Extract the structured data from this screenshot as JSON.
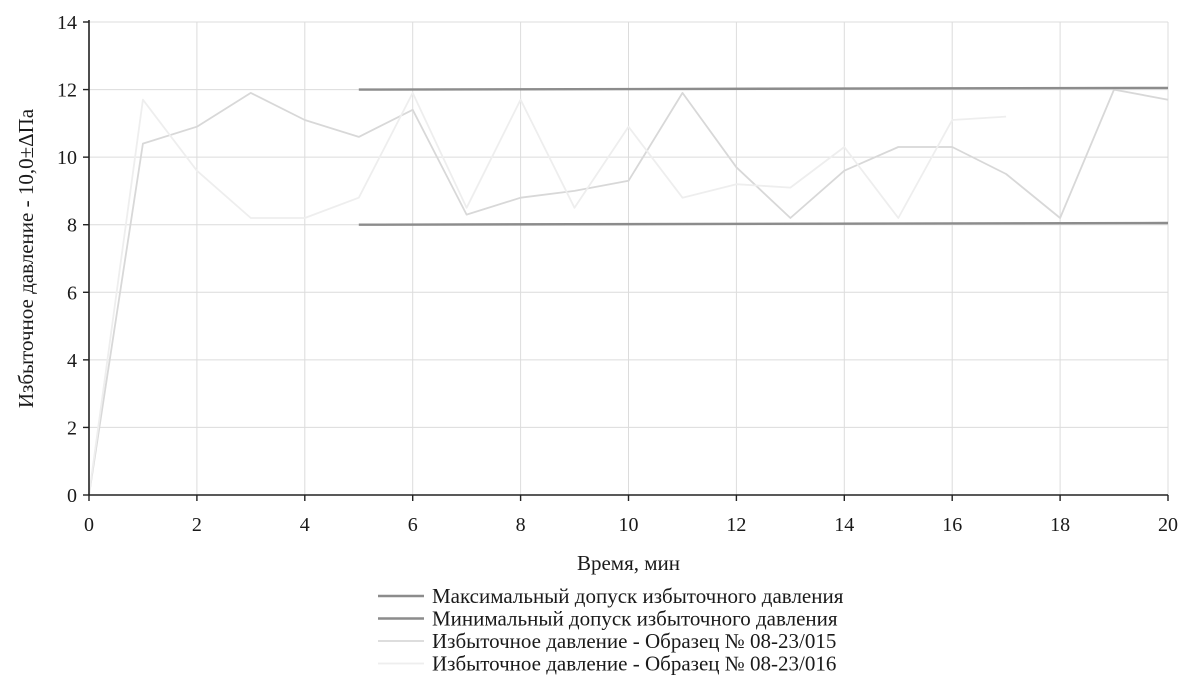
{
  "chart_data": {
    "type": "line",
    "title": "",
    "xlabel": "Время, мин",
    "ylabel": "Избыточное давление - 10,0±ΔПа",
    "xlim": [
      0,
      20
    ],
    "ylim": [
      0,
      14
    ],
    "xticks": [
      0,
      2,
      4,
      6,
      8,
      10,
      12,
      14,
      16,
      18,
      20
    ],
    "yticks": [
      0,
      2,
      4,
      6,
      8,
      10,
      12,
      14
    ],
    "grid": true,
    "legend_position": "bottom",
    "series": [
      {
        "name": "Максимальный допуск избыточного давления",
        "color": "#8c8c8c",
        "x": [
          5,
          20
        ],
        "y": [
          12.0,
          12.05
        ]
      },
      {
        "name": "Минимальный допуск избыточного давления",
        "color": "#8c8c8c",
        "x": [
          5,
          20
        ],
        "y": [
          8.0,
          8.05
        ]
      },
      {
        "name": "Избыточное давление - Образец № 08-23/015",
        "color": "#d8d8d8",
        "x": [
          0,
          1,
          2,
          3,
          4,
          5,
          6,
          7,
          8,
          9,
          10,
          11,
          12,
          13,
          14,
          15,
          16,
          17,
          18,
          19,
          20
        ],
        "y": [
          0,
          10.4,
          10.9,
          11.9,
          11.1,
          10.6,
          11.4,
          8.3,
          8.8,
          9.0,
          9.3,
          11.9,
          9.7,
          8.2,
          9.6,
          10.3,
          10.3,
          9.5,
          8.2,
          12.0,
          11.7
        ]
      },
      {
        "name": "Избыточное давление - Образец № 08-23/016",
        "color": "#eeeeee",
        "x": [
          0,
          1,
          2,
          3,
          4,
          5,
          6,
          7,
          8,
          9,
          10,
          11,
          12,
          13,
          14,
          15,
          16,
          17
        ],
        "y": [
          0,
          11.7,
          9.6,
          8.2,
          8.2,
          8.8,
          11.9,
          8.5,
          11.7,
          8.5,
          10.9,
          8.8,
          9.2,
          9.1,
          10.3,
          8.2,
          11.1,
          11.2
        ]
      }
    ]
  }
}
